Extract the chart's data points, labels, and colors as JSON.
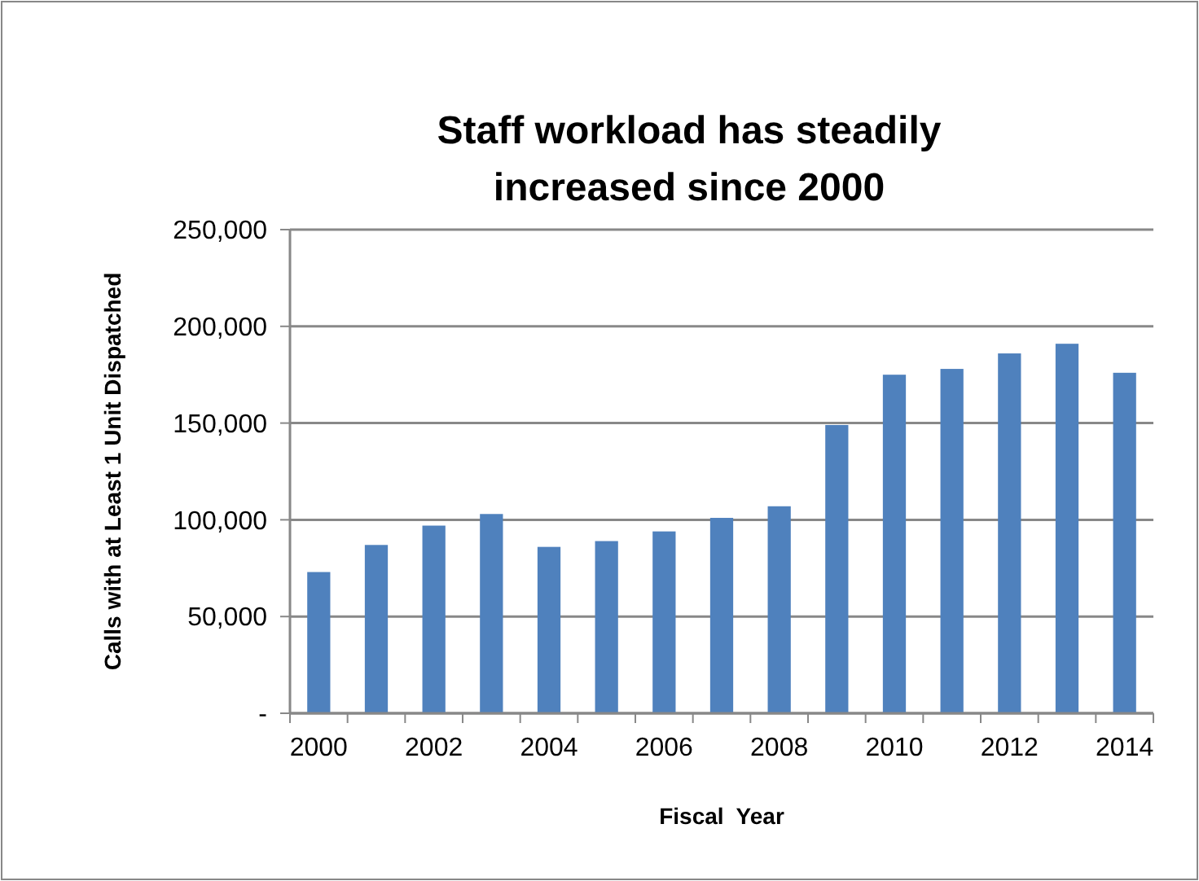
{
  "chart_data": {
    "type": "bar",
    "title": "Staff workload has steadily increased since 2000",
    "xlabel": "Fiscal  Year",
    "ylabel": "Calls with at Least 1 Unit Dispatched",
    "categories": [
      "2000",
      null,
      "2002",
      null,
      "2004",
      null,
      "2006",
      null,
      "2008",
      null,
      "2010",
      null,
      "2012",
      null,
      "2014"
    ],
    "values": [
      73000,
      87000,
      97000,
      103000,
      86000,
      89000,
      94000,
      101000,
      107000,
      149000,
      175000,
      178000,
      186000,
      191000,
      176000
    ],
    "color": "#4f81bd",
    "ylim": [
      0,
      250000
    ],
    "yticks": [
      {
        "value": 0,
        "label": "-"
      },
      {
        "value": 50000,
        "label": "50,000"
      },
      {
        "value": 100000,
        "label": "100,000"
      },
      {
        "value": 150000,
        "label": "150,000"
      },
      {
        "value": 200000,
        "label": "200,000"
      },
      {
        "value": 250000,
        "label": "250,000"
      }
    ],
    "grid": "y"
  }
}
